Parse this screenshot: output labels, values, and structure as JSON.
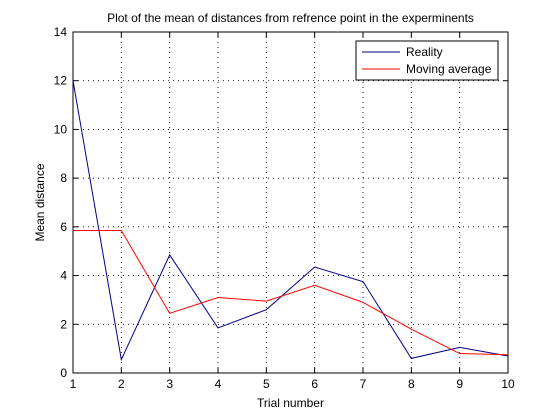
{
  "chart_data": {
    "type": "line",
    "title": "Plot of the mean of distances from refrence point in the experminents",
    "xlabel": "Trial number",
    "ylabel": "Mean distance",
    "xlim": [
      1,
      10
    ],
    "ylim": [
      0,
      14
    ],
    "xticks": [
      1,
      2,
      3,
      4,
      5,
      6,
      7,
      8,
      9,
      10
    ],
    "yticks": [
      0,
      2,
      4,
      6,
      8,
      10,
      12,
      14
    ],
    "grid": true,
    "legend_position": "top-right",
    "x": [
      1,
      2,
      3,
      4,
      5,
      6,
      7,
      8,
      9,
      10
    ],
    "series": [
      {
        "name": "Reality",
        "color": "#00008b",
        "values": [
          12.0,
          0.55,
          4.85,
          1.85,
          2.6,
          4.35,
          3.75,
          0.6,
          1.05,
          0.7
        ]
      },
      {
        "name": "Moving average",
        "color": "#ff0000",
        "values": [
          5.85,
          5.85,
          2.45,
          3.1,
          2.95,
          3.6,
          2.9,
          1.8,
          0.8,
          0.75
        ]
      }
    ]
  }
}
